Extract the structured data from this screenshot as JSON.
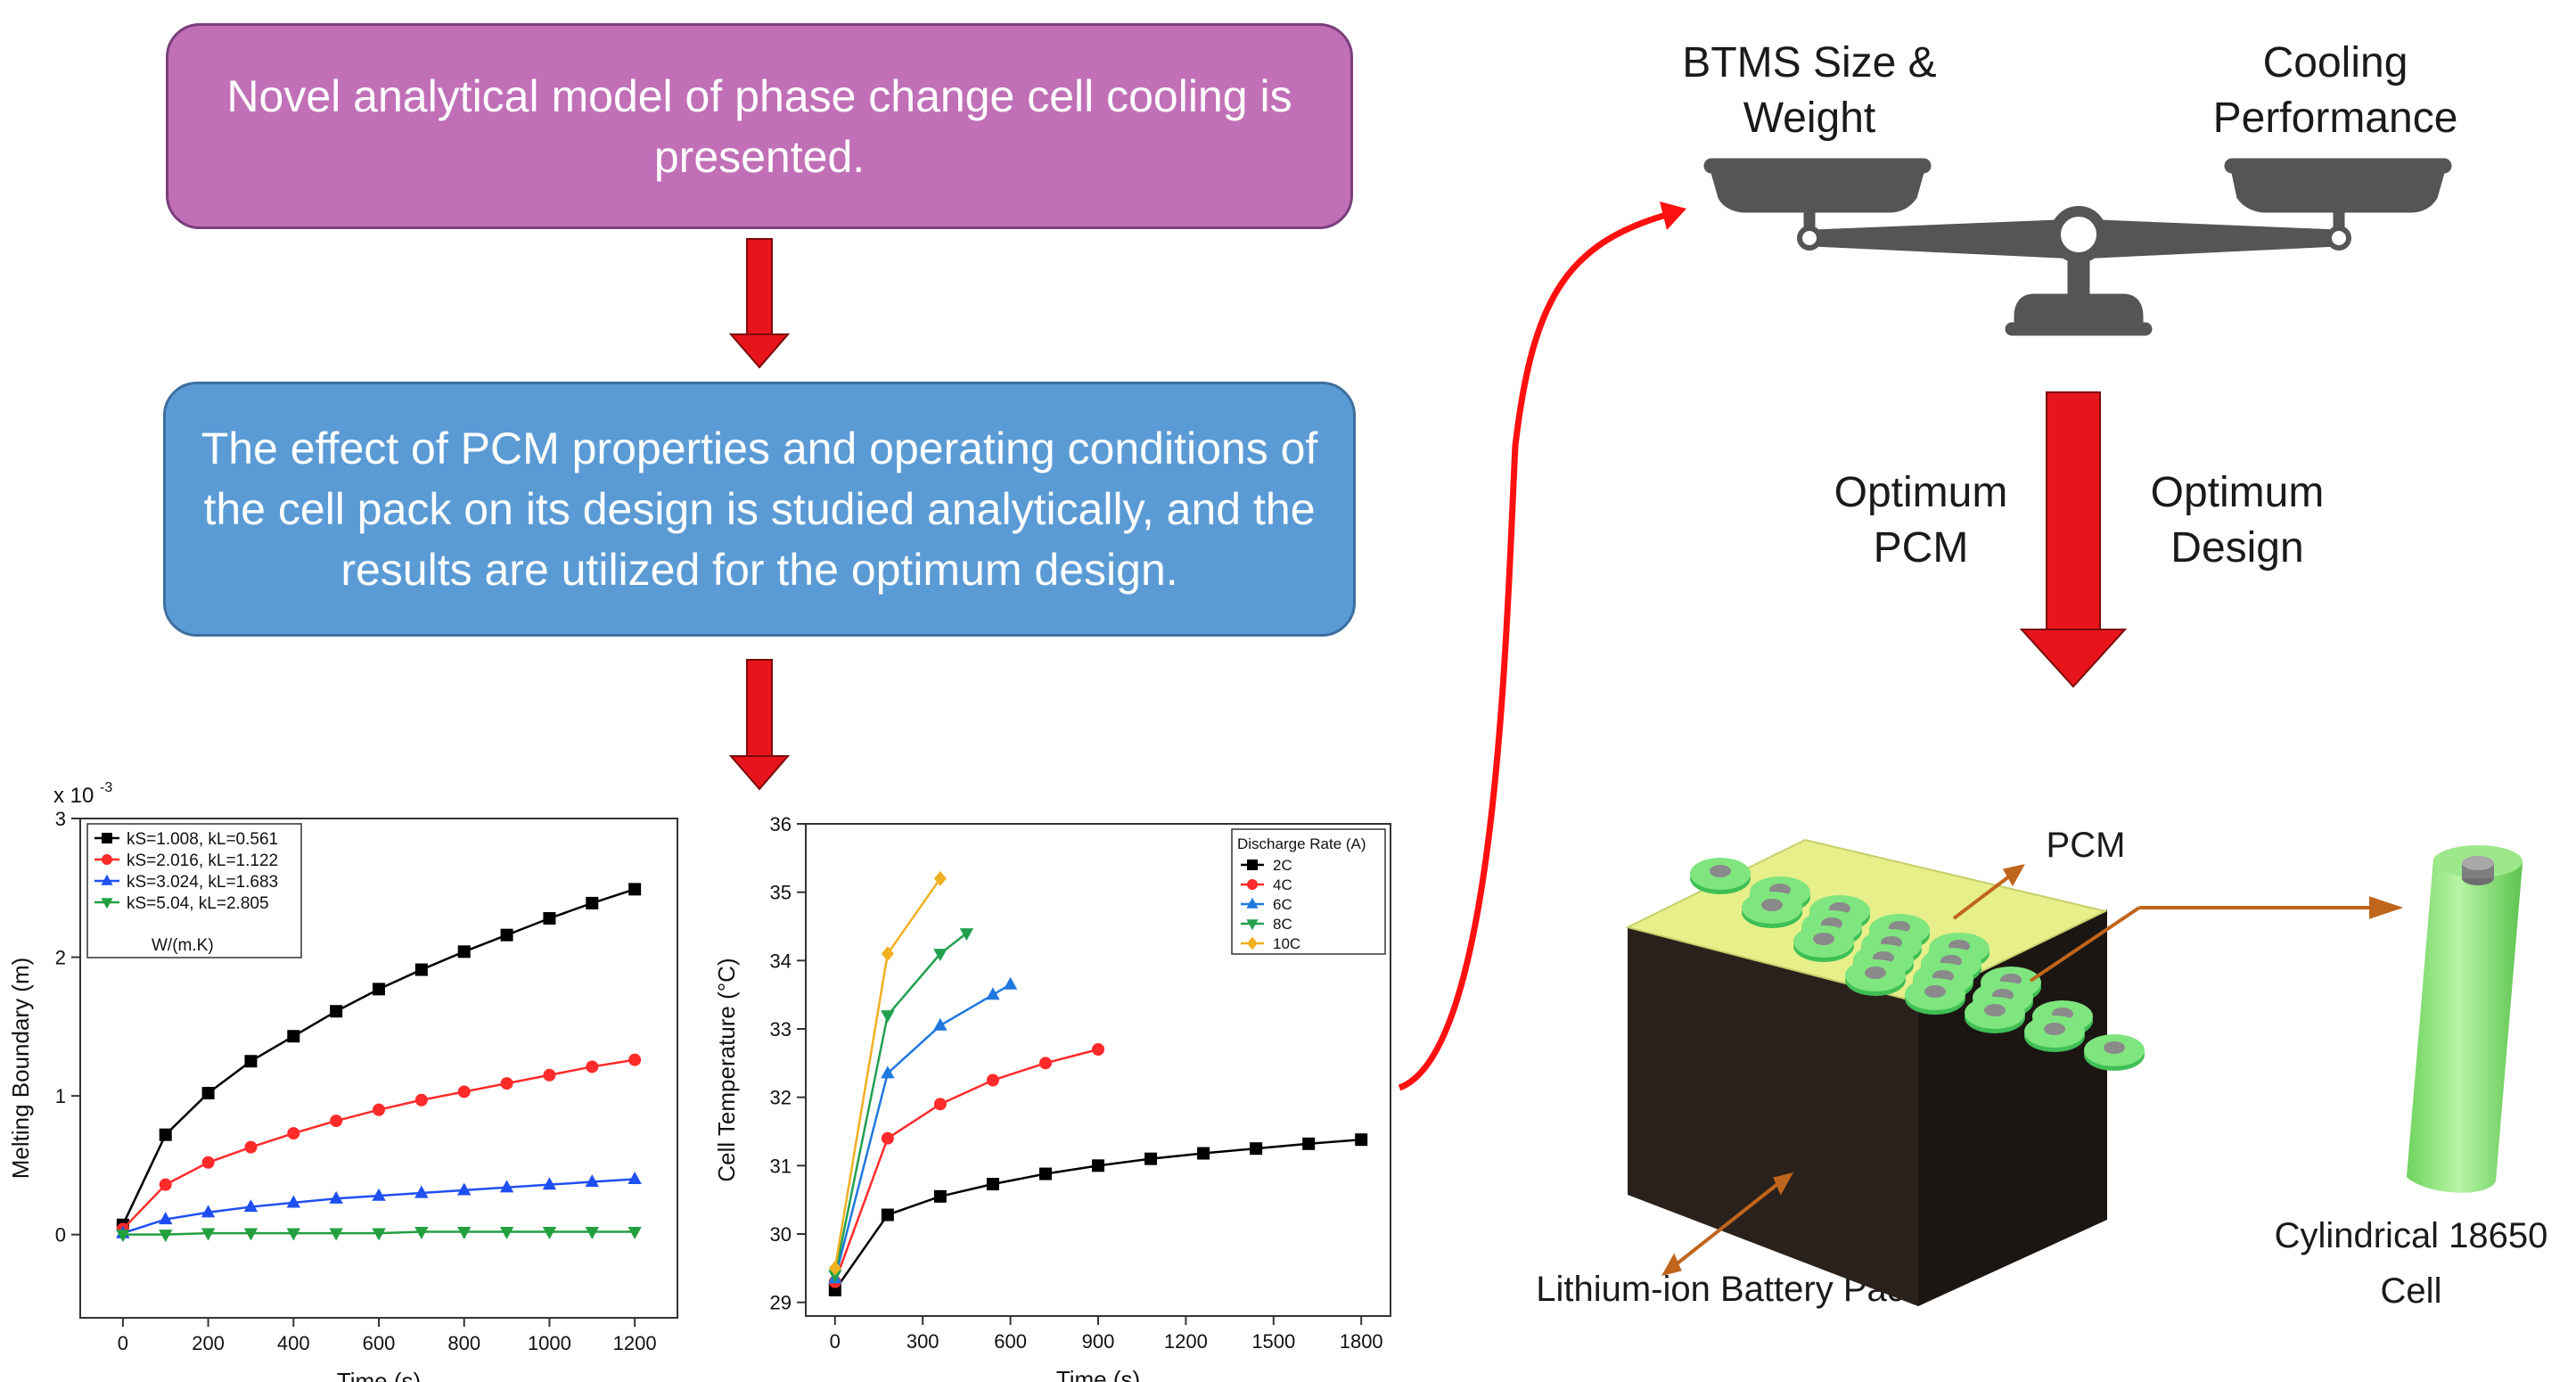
{
  "flow": {
    "box1_text": "Novel analytical model of phase change cell cooling is presented.",
    "box2_text": "The effect of PCM properties and operating conditions of the cell pack on its design is studied analytically, and the results are utilized for the optimum design.",
    "arrow_color": "#e8141b"
  },
  "balance": {
    "left_label": "BTMS Size & Weight",
    "right_label": "Cooling Performance",
    "color": "#555555"
  },
  "optimum": {
    "left_label": "Optimum PCM",
    "right_label": "Optimum Design"
  },
  "battery": {
    "pcm_label": "PCM",
    "pack_label": "Lithium-ion Battery Pack",
    "cell_label": "Cylindrical 18650 Cell",
    "top_color": "#e6ef8a",
    "cell_color": "#8ee07a",
    "body_color": "#2b211c",
    "leader_color": "#c0651c"
  },
  "chart_data": [
    {
      "type": "line",
      "xlabel": "Time (s)",
      "ylabel": "Melting Boundary (m)",
      "y_multiplier": "x 10-3",
      "xlim": [
        -100,
        1300
      ],
      "ylim": [
        -0.6,
        3
      ],
      "xticks": [
        0,
        200,
        400,
        600,
        800,
        1000,
        1200
      ],
      "yticks": [
        0,
        1,
        2,
        3
      ],
      "legend_position": "top-left",
      "legend_unit": "W/(m.K)",
      "x": [
        0,
        100,
        200,
        300,
        400,
        500,
        600,
        700,
        800,
        900,
        1000,
        1100,
        1200
      ],
      "series": [
        {
          "name": "kS=1.008, kL=0.561",
          "color": "#000000",
          "marker": "square",
          "values": [
            0.07,
            0.72,
            1.02,
            1.25,
            1.43,
            1.61,
            1.77,
            1.91,
            2.04,
            2.16,
            2.28,
            2.39,
            2.49
          ]
        },
        {
          "name": "kS=2.016, kL=1.122",
          "color": "#ff2a2a",
          "marker": "circle",
          "values": [
            0.04,
            0.36,
            0.52,
            0.63,
            0.73,
            0.82,
            0.9,
            0.97,
            1.03,
            1.09,
            1.15,
            1.21,
            1.26
          ]
        },
        {
          "name": "kS=3.024, kL=1.683",
          "color": "#1f4ff0",
          "marker": "triangle-up",
          "values": [
            0.01,
            0.11,
            0.16,
            0.2,
            0.23,
            0.26,
            0.28,
            0.3,
            0.32,
            0.34,
            0.36,
            0.38,
            0.4
          ]
        },
        {
          "name": "kS=5.04, kL=2.805",
          "color": "#22a040",
          "marker": "triangle-down",
          "values": [
            0.0,
            0.0,
            0.01,
            0.01,
            0.01,
            0.01,
            0.01,
            0.02,
            0.02,
            0.02,
            0.02,
            0.02,
            0.02
          ]
        }
      ]
    },
    {
      "type": "line",
      "xlabel": "Time (s)",
      "ylabel": "Cell Temperature (°C)",
      "xlim": [
        -100,
        1900
      ],
      "ylim": [
        28.8,
        36
      ],
      "xticks": [
        0,
        300,
        600,
        900,
        1200,
        1500,
        1800
      ],
      "yticks": [
        29,
        30,
        31,
        32,
        33,
        34,
        35,
        36
      ],
      "legend_title": "Discharge Rate (A)",
      "legend_position": "top-right",
      "series": [
        {
          "name": "2C",
          "color": "#000000",
          "marker": "square",
          "x": [
            0,
            180,
            360,
            540,
            720,
            900,
            1080,
            1260,
            1440,
            1620,
            1800
          ],
          "values": [
            29.18,
            30.28,
            30.55,
            30.73,
            30.88,
            31.0,
            31.1,
            31.18,
            31.25,
            31.32,
            31.38
          ]
        },
        {
          "name": "4C",
          "color": "#ff2a2a",
          "marker": "circle",
          "x": [
            0,
            180,
            360,
            540,
            720,
            900
          ],
          "values": [
            29.3,
            31.4,
            31.9,
            32.25,
            32.5,
            32.7
          ]
        },
        {
          "name": "6C",
          "color": "#1f78e0",
          "marker": "triangle-up",
          "x": [
            0,
            180,
            360,
            540,
            600
          ],
          "values": [
            29.35,
            32.35,
            33.05,
            33.5,
            33.65
          ]
        },
        {
          "name": "8C",
          "color": "#22a050",
          "marker": "triangle-down",
          "x": [
            0,
            180,
            360,
            450
          ],
          "values": [
            29.4,
            33.2,
            34.1,
            34.4
          ]
        },
        {
          "name": "10C",
          "color": "#f0b020",
          "marker": "diamond",
          "x": [
            0,
            180,
            360
          ],
          "values": [
            29.5,
            34.1,
            35.2
          ]
        }
      ]
    }
  ]
}
